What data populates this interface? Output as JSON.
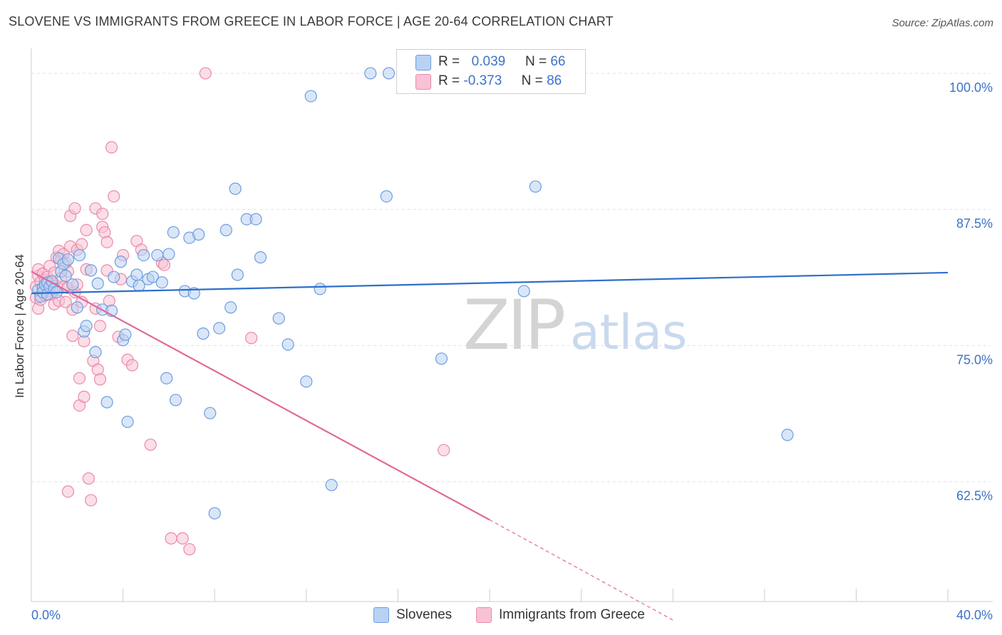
{
  "header": {
    "title": "SLOVENE VS IMMIGRANTS FROM GREECE IN LABOR FORCE | AGE 20-64 CORRELATION CHART",
    "source": "Source: ZipAtlas.com"
  },
  "watermark": {
    "zip": "ZIP",
    "atlas": "atlas"
  },
  "legend": {
    "row1": {
      "r_label": "R =",
      "r_value": "0.039",
      "n_label": "N =",
      "n_value": "66"
    },
    "row2": {
      "r_label": "R =",
      "r_value": "-0.373",
      "n_label": "N =",
      "n_value": "86"
    }
  },
  "bottom_legend": {
    "series1": "Slovenes",
    "series2": "Immigrants from Greece"
  },
  "colors": {
    "blue_fill": "#b9d2f3",
    "blue_stroke": "#6d9de0",
    "blue_line": "#2f6fcb",
    "pink_fill": "#f7c3d4",
    "pink_stroke": "#ea8aa9",
    "pink_line": "#e0699a",
    "axis_text": "#3d72c9",
    "grid": "#e2e2e2"
  },
  "chart_data": {
    "type": "scatter",
    "title": "SLOVENE VS IMMIGRANTS FROM GREECE IN LABOR FORCE | AGE 20-64 CORRELATION CHART",
    "xlabel": "",
    "ylabel": "In Labor Force | Age 20-64",
    "xlim": [
      0,
      40
    ],
    "ylim": [
      51.5,
      101.5
    ],
    "x_tick_labels": [
      "0.0%",
      "40.0%"
    ],
    "y_ticks": [
      62.5,
      75.0,
      87.5,
      100.0
    ],
    "y_tick_labels": [
      "62.5%",
      "75.0%",
      "87.5%",
      "100.0%"
    ],
    "grid": true,
    "series": [
      {
        "name": "Slovenes",
        "r": 0.039,
        "n": 66,
        "trend": {
          "x": [
            0,
            40
          ],
          "y": [
            79.8,
            81.7
          ]
        },
        "points": [
          [
            0.3,
            80.1
          ],
          [
            0.4,
            79.5
          ],
          [
            0.5,
            80.3
          ],
          [
            0.5,
            79.9
          ],
          [
            0.6,
            80.6
          ],
          [
            0.7,
            80.8
          ],
          [
            0.7,
            79.7
          ],
          [
            0.8,
            80.4
          ],
          [
            0.9,
            80.9
          ],
          [
            1.0,
            80.2
          ],
          [
            1.1,
            79.9
          ],
          [
            1.2,
            83.0
          ],
          [
            1.3,
            81.8
          ],
          [
            1.4,
            82.5
          ],
          [
            1.5,
            81.4
          ],
          [
            1.6,
            82.9
          ],
          [
            1.8,
            80.6
          ],
          [
            2.0,
            78.5
          ],
          [
            2.1,
            83.3
          ],
          [
            2.3,
            76.3
          ],
          [
            2.4,
            76.8
          ],
          [
            2.6,
            81.9
          ],
          [
            2.8,
            74.4
          ],
          [
            2.9,
            80.7
          ],
          [
            3.1,
            78.3
          ],
          [
            3.3,
            69.8
          ],
          [
            3.5,
            78.2
          ],
          [
            3.6,
            81.3
          ],
          [
            3.9,
            82.7
          ],
          [
            4.0,
            75.5
          ],
          [
            4.1,
            76.0
          ],
          [
            4.2,
            68.0
          ],
          [
            4.4,
            80.9
          ],
          [
            4.6,
            81.5
          ],
          [
            4.7,
            80.5
          ],
          [
            4.9,
            83.3
          ],
          [
            5.1,
            81.1
          ],
          [
            5.3,
            81.3
          ],
          [
            5.5,
            83.3
          ],
          [
            5.7,
            80.8
          ],
          [
            5.9,
            72.0
          ],
          [
            6.0,
            83.4
          ],
          [
            6.2,
            85.4
          ],
          [
            6.3,
            70.0
          ],
          [
            6.7,
            80.0
          ],
          [
            6.9,
            84.9
          ],
          [
            7.1,
            79.8
          ],
          [
            7.3,
            85.2
          ],
          [
            7.5,
            76.1
          ],
          [
            7.8,
            68.8
          ],
          [
            8.0,
            59.6
          ],
          [
            8.2,
            76.6
          ],
          [
            8.5,
            85.6
          ],
          [
            8.7,
            78.5
          ],
          [
            8.9,
            89.4
          ],
          [
            9.0,
            81.5
          ],
          [
            9.4,
            86.6
          ],
          [
            9.8,
            86.6
          ],
          [
            10.0,
            83.1
          ],
          [
            10.8,
            77.5
          ],
          [
            11.2,
            75.1
          ],
          [
            12.0,
            71.7
          ],
          [
            12.2,
            97.9
          ],
          [
            12.6,
            80.2
          ],
          [
            13.1,
            62.2
          ],
          [
            14.8,
            100.0
          ],
          [
            15.5,
            88.7
          ],
          [
            15.6,
            100.0
          ],
          [
            17.9,
            73.8
          ],
          [
            21.5,
            80.0
          ],
          [
            22.0,
            89.6
          ],
          [
            33.0,
            66.8
          ]
        ]
      },
      {
        "name": "Immigrants from Greece",
        "r": -0.373,
        "n": 86,
        "trend": {
          "x": [
            0,
            20
          ],
          "y": [
            81.8,
            59.0
          ]
        },
        "trend_dashed": {
          "x": [
            20,
            28
          ],
          "y": [
            59.0,
            49.8
          ]
        },
        "points": [
          [
            0.2,
            80.4
          ],
          [
            0.2,
            79.4
          ],
          [
            0.3,
            81.4
          ],
          [
            0.3,
            82.0
          ],
          [
            0.3,
            78.4
          ],
          [
            0.4,
            80.8
          ],
          [
            0.4,
            79.2
          ],
          [
            0.5,
            81.6
          ],
          [
            0.5,
            80.1
          ],
          [
            0.6,
            81.0
          ],
          [
            0.6,
            79.6
          ],
          [
            0.7,
            80.6
          ],
          [
            0.7,
            81.3
          ],
          [
            0.8,
            80.0
          ],
          [
            0.8,
            82.3
          ],
          [
            0.9,
            80.9
          ],
          [
            0.9,
            79.7
          ],
          [
            1.0,
            81.7
          ],
          [
            1.0,
            78.8
          ],
          [
            1.1,
            83.1
          ],
          [
            1.1,
            80.5
          ],
          [
            1.2,
            83.7
          ],
          [
            1.2,
            79.1
          ],
          [
            1.3,
            81.2
          ],
          [
            1.3,
            82.9
          ],
          [
            1.4,
            80.4
          ],
          [
            1.4,
            83.4
          ],
          [
            1.5,
            79.0
          ],
          [
            1.5,
            82.6
          ],
          [
            1.6,
            81.8
          ],
          [
            1.6,
            80.3
          ],
          [
            1.7,
            86.9
          ],
          [
            1.7,
            84.1
          ],
          [
            1.8,
            78.3
          ],
          [
            1.8,
            75.9
          ],
          [
            1.9,
            79.9
          ],
          [
            1.9,
            87.6
          ],
          [
            2.0,
            83.8
          ],
          [
            2.0,
            80.6
          ],
          [
            2.1,
            72.0
          ],
          [
            2.1,
            69.5
          ],
          [
            2.2,
            84.3
          ],
          [
            2.2,
            79.0
          ],
          [
            2.3,
            70.3
          ],
          [
            2.3,
            75.4
          ],
          [
            2.4,
            85.6
          ],
          [
            2.4,
            82.0
          ],
          [
            2.5,
            62.8
          ],
          [
            2.6,
            60.8
          ],
          [
            2.7,
            73.6
          ],
          [
            2.8,
            87.6
          ],
          [
            2.8,
            78.4
          ],
          [
            2.9,
            72.8
          ],
          [
            3.0,
            71.9
          ],
          [
            3.0,
            76.8
          ],
          [
            3.1,
            87.1
          ],
          [
            3.1,
            85.9
          ],
          [
            3.2,
            85.4
          ],
          [
            3.3,
            84.5
          ],
          [
            3.3,
            81.9
          ],
          [
            3.4,
            79.1
          ],
          [
            3.5,
            93.2
          ],
          [
            3.6,
            88.7
          ],
          [
            3.8,
            75.8
          ],
          [
            3.9,
            81.1
          ],
          [
            4.0,
            83.3
          ],
          [
            4.2,
            73.7
          ],
          [
            4.4,
            73.2
          ],
          [
            4.6,
            84.6
          ],
          [
            4.8,
            83.8
          ],
          [
            5.2,
            65.9
          ],
          [
            5.7,
            82.6
          ],
          [
            5.8,
            82.4
          ],
          [
            6.1,
            57.3
          ],
          [
            6.6,
            57.3
          ],
          [
            6.9,
            56.3
          ],
          [
            7.6,
            100.0
          ],
          [
            9.6,
            75.7
          ],
          [
            18.0,
            65.4
          ],
          [
            1.6,
            61.6
          ]
        ]
      }
    ]
  }
}
